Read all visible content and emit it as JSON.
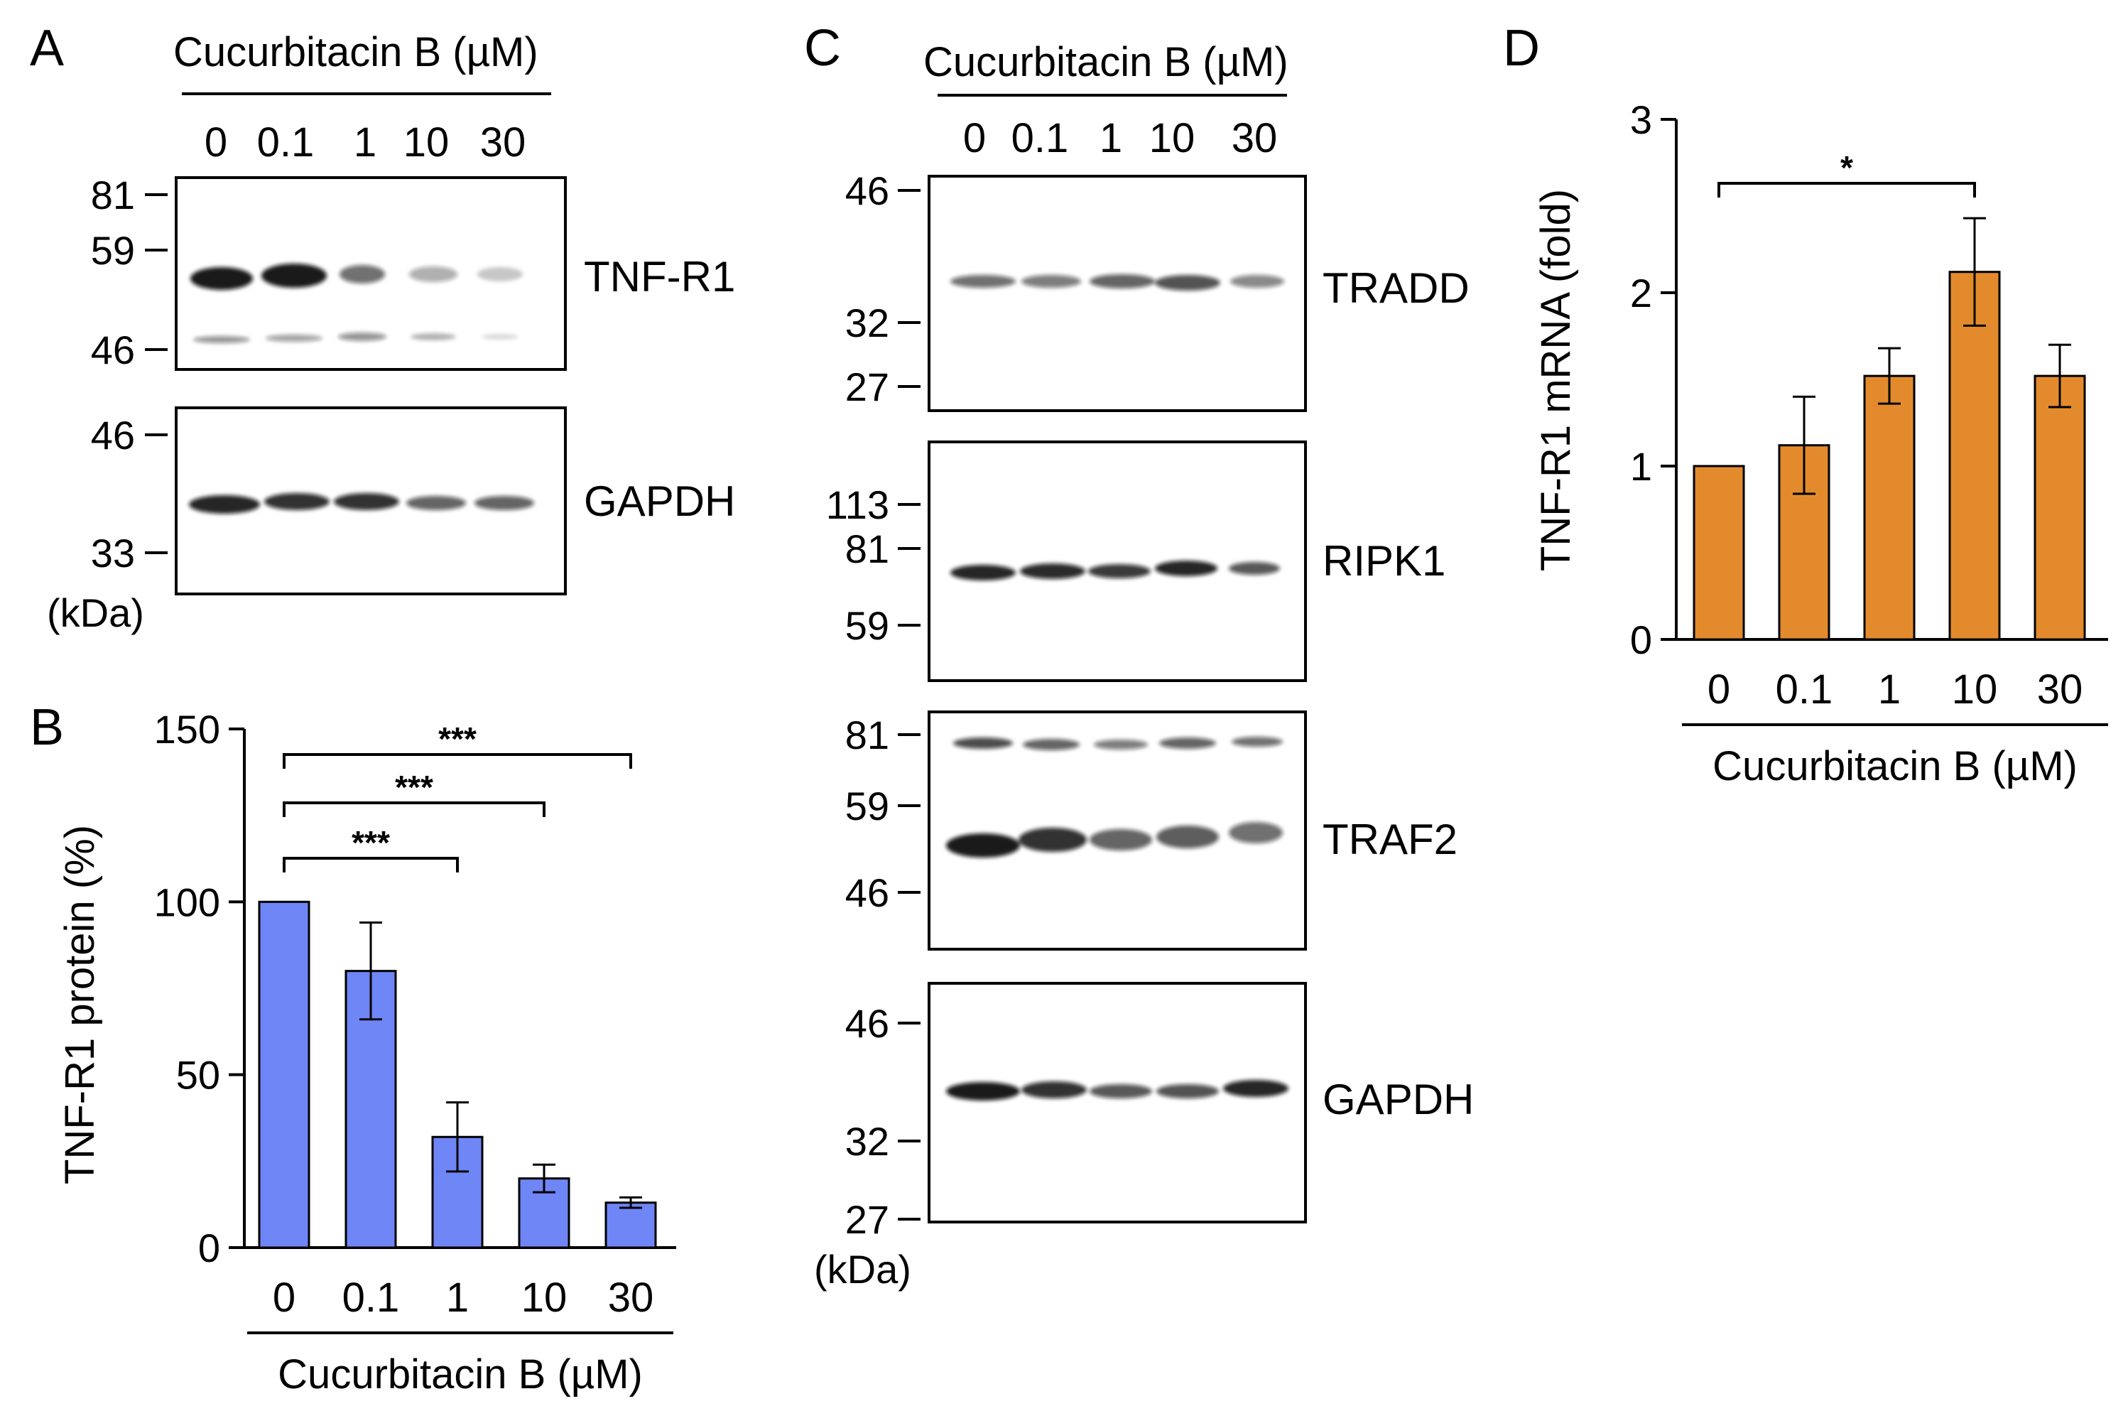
{
  "panels": {
    "A": "A",
    "B": "B",
    "C": "C",
    "D": "D"
  },
  "treatment_label": "Cucurbitacin B (µM)",
  "doses": [
    "0",
    "0.1",
    "1",
    "10",
    "30"
  ],
  "kda": "(kDa)",
  "panelA": {
    "markers_top": [
      "81",
      "59",
      "46"
    ],
    "markers_bottom": [
      "46",
      "33"
    ],
    "proteins": [
      "TNF-R1",
      "GAPDH"
    ]
  },
  "panelC": {
    "tradd_markers": [
      "46",
      "32",
      "27"
    ],
    "ripk1_markers": [
      "113",
      "81",
      "59"
    ],
    "traf2_markers": [
      "81",
      "59",
      "46"
    ],
    "gapdh_markers": [
      "46",
      "32",
      "27"
    ],
    "proteins": [
      "TRADD",
      "RIPK1",
      "TRAF2",
      "GAPDH"
    ]
  },
  "chart_data": [
    {
      "panel": "B",
      "type": "bar",
      "categories": [
        "0",
        "0.1",
        "1",
        "10",
        "30"
      ],
      "values": [
        100,
        80,
        32,
        20,
        13
      ],
      "errors": [
        0,
        14,
        10,
        4,
        1.5
      ],
      "ylabel": "TNF-R1 protein  (%)",
      "xlabel": "Cucurbitacin B (µM)",
      "ylim": [
        0,
        150
      ],
      "yticks": [
        "0",
        "50",
        "100",
        "150"
      ],
      "color": "#6f86f6",
      "significance": [
        {
          "from": "0",
          "to": "1",
          "label": "***"
        },
        {
          "from": "0",
          "to": "10",
          "label": "***"
        },
        {
          "from": "0",
          "to": "30",
          "label": "***"
        }
      ]
    },
    {
      "panel": "D",
      "type": "bar",
      "categories": [
        "0",
        "0.1",
        "1",
        "10",
        "30"
      ],
      "values": [
        1.0,
        1.12,
        1.52,
        2.12,
        1.52
      ],
      "errors": [
        0,
        0.28,
        0.16,
        0.31,
        0.18
      ],
      "ylabel": "TNF-R1 mRNA (fold)",
      "xlabel": "Cucurbitacin B (µM)",
      "ylim": [
        0,
        3
      ],
      "yticks": [
        "0",
        "1",
        "2",
        "3"
      ],
      "color": "#e38b2c",
      "significance": [
        {
          "from": "0",
          "to": "10",
          "label": "*"
        }
      ]
    }
  ]
}
